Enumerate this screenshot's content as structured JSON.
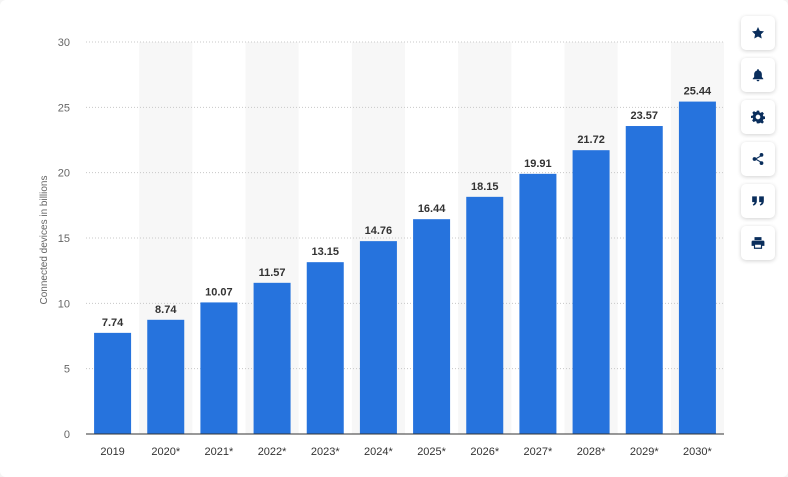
{
  "chart_data": {
    "type": "bar",
    "title": "",
    "xlabel": "",
    "ylabel": "Connected devices in billions",
    "ylim": [
      0,
      30
    ],
    "yticks": [
      0,
      5,
      10,
      15,
      20,
      25,
      30
    ],
    "grid": true,
    "categories": [
      "2019",
      "2020*",
      "2021*",
      "2022*",
      "2023*",
      "2024*",
      "2025*",
      "2026*",
      "2027*",
      "2028*",
      "2029*",
      "2030*"
    ],
    "values": [
      7.74,
      8.74,
      10.07,
      11.57,
      13.15,
      14.76,
      16.44,
      18.15,
      19.91,
      21.72,
      23.57,
      25.44
    ],
    "value_labels": [
      "7.74",
      "8.74",
      "10.07",
      "11.57",
      "13.15",
      "14.76",
      "16.44",
      "18.15",
      "19.91",
      "21.72",
      "23.57",
      "25.44"
    ],
    "bar_color": "#2673dd"
  },
  "toolbar": {
    "items": [
      {
        "icon": "star-icon",
        "name": "favorite-button"
      },
      {
        "icon": "bell-icon",
        "name": "notification-button"
      },
      {
        "icon": "gear-icon",
        "name": "settings-button"
      },
      {
        "icon": "share-icon",
        "name": "share-button"
      },
      {
        "icon": "quote-icon",
        "name": "cite-button"
      },
      {
        "icon": "print-icon",
        "name": "print-button"
      }
    ]
  }
}
